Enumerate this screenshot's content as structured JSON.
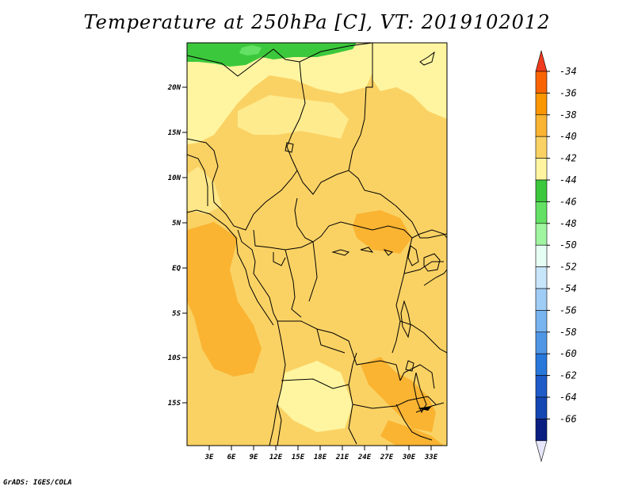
{
  "title": "Temperature at 250hPa [C], VT: 2019102012",
  "credit": "GrADS: IGES/COLA",
  "lat_labels": [
    "20N",
    "15N",
    "10N",
    "5N",
    "EQ",
    "5S",
    "10S",
    "15S"
  ],
  "lon_labels": [
    "3E",
    "6E",
    "9E",
    "12E",
    "15E",
    "18E",
    "21E",
    "24E",
    "27E",
    "30E",
    "33E"
  ],
  "colorbar": {
    "labels": [
      "-34",
      "-36",
      "-38",
      "-40",
      "-42",
      "-44",
      "-46",
      "-48",
      "-50",
      "-52",
      "-54",
      "-56",
      "-58",
      "-60",
      "-62",
      "-64",
      "-66"
    ],
    "colors": [
      "#f03c1e",
      "#fa6400",
      "#fa9600",
      "#fab432",
      "#fad264",
      "#fff5a0",
      "#3cc83c",
      "#64e164",
      "#a0f5a0",
      "#e6fff5",
      "#c8e6fa",
      "#a0cdf5",
      "#78b4f0",
      "#5096e6",
      "#2878dc",
      "#1e5ac8",
      "#1446b4",
      "#0a1e82",
      "#e6e6fa"
    ]
  }
}
